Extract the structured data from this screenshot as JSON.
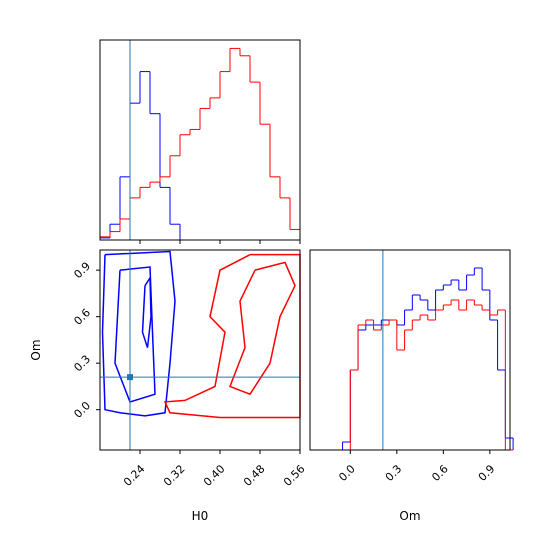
{
  "chart_data": [
    {
      "type": "histogram",
      "xlim": [
        0.16,
        0.56
      ],
      "ylim": [
        0,
        190
      ],
      "truth": 0.22,
      "truth_color": "#1f77b4",
      "bins": [
        0.16,
        0.18,
        0.2,
        0.22,
        0.24,
        0.26,
        0.28,
        0.3,
        0.32,
        0.34,
        0.36,
        0.38,
        0.4,
        0.42,
        0.44,
        0.46,
        0.48,
        0.5,
        0.52,
        0.54,
        0.56
      ],
      "series": [
        {
          "color": "blue",
          "values": [
            2,
            15,
            60,
            130,
            160,
            120,
            50,
            15,
            0,
            0,
            0,
            0,
            0,
            0,
            0,
            0,
            0,
            0,
            0,
            0
          ]
        },
        {
          "color": "red",
          "values": [
            3,
            8,
            20,
            40,
            50,
            55,
            60,
            80,
            100,
            105,
            125,
            135,
            160,
            182,
            175,
            150,
            110,
            60,
            40,
            10
          ]
        }
      ]
    },
    {
      "type": "contour",
      "xlim": [
        0.16,
        0.56
      ],
      "ylim": [
        -0.26,
        1.03
      ],
      "xlabel": "H0",
      "ylabel": "Om",
      "xticks": [
        0.24,
        0.32,
        {
          "value": 0.4,
          "label": "0.40"
        },
        0.48,
        0.56
      ],
      "yticks": [
        {
          "value": 0,
          "label": "0.0"
        },
        0.3,
        0.6,
        0.9
      ],
      "truth_x": 0.22,
      "truth_y": 0.21,
      "truth_color": "#1f77b4",
      "contours": [
        {
          "color": "blue",
          "x": [
            0.17,
            0.3,
            0.31,
            0.3,
            0.29,
            0.25,
            0.2,
            0.17,
            0.165,
            0.17
          ],
          "y": [
            1.0,
            1.02,
            0.7,
            0.3,
            -0.02,
            -0.04,
            -0.02,
            0.0,
            0.5,
            1.0
          ]
        },
        {
          "color": "blue",
          "x": [
            0.2,
            0.26,
            0.265,
            0.27,
            0.22,
            0.19,
            0.2
          ],
          "y": [
            0.9,
            0.92,
            0.5,
            0.1,
            0.05,
            0.3,
            0.9
          ]
        },
        {
          "color": "blue",
          "x": [
            0.25,
            0.26,
            0.262,
            0.255,
            0.245,
            0.25
          ],
          "y": [
            0.8,
            0.85,
            0.6,
            0.4,
            0.5,
            0.8
          ]
        },
        {
          "color": "red",
          "x": [
            0.46,
            0.56,
            0.56,
            0.4,
            0.3,
            0.29,
            0.33,
            0.39,
            0.41,
            0.38,
            0.4,
            0.46
          ],
          "y": [
            1.0,
            1.0,
            -0.05,
            -0.05,
            -0.02,
            0.05,
            0.06,
            0.15,
            0.5,
            0.6,
            0.9,
            1.0
          ]
        },
        {
          "color": "red",
          "x": [
            0.47,
            0.53,
            0.55,
            0.52,
            0.5,
            0.46,
            0.42,
            0.45,
            0.44,
            0.47
          ],
          "y": [
            0.9,
            0.95,
            0.8,
            0.6,
            0.3,
            0.1,
            0.15,
            0.4,
            0.7,
            0.9
          ]
        }
      ]
    },
    {
      "type": "histogram",
      "xlim": [
        -0.26,
        1.03
      ],
      "ylim": [
        0,
        200
      ],
      "xlabel": "Om",
      "truth": 0.21,
      "truth_color": "#1f77b4",
      "xticks": [
        {
          "value": 0,
          "label": "0.0"
        },
        0.3,
        0.6,
        0.9
      ],
      "bins": [
        -0.05,
        0,
        0.05,
        0.1,
        0.15,
        0.2,
        0.25,
        0.3,
        0.35,
        0.4,
        0.45,
        0.5,
        0.55,
        0.6,
        0.65,
        0.7,
        0.75,
        0.8,
        0.85,
        0.9,
        0.95,
        1.0,
        1.05
      ],
      "series": [
        {
          "color": "blue",
          "values": [
            8,
            80,
            120,
            125,
            125,
            130,
            130,
            125,
            140,
            155,
            150,
            140,
            160,
            165,
            170,
            160,
            175,
            182,
            160,
            130,
            80,
            12
          ]
        },
        {
          "color": "red",
          "values": [
            0,
            80,
            125,
            130,
            120,
            125,
            130,
            100,
            120,
            130,
            135,
            130,
            140,
            145,
            150,
            140,
            150,
            145,
            140,
            135,
            140,
            0
          ]
        }
      ]
    }
  ]
}
